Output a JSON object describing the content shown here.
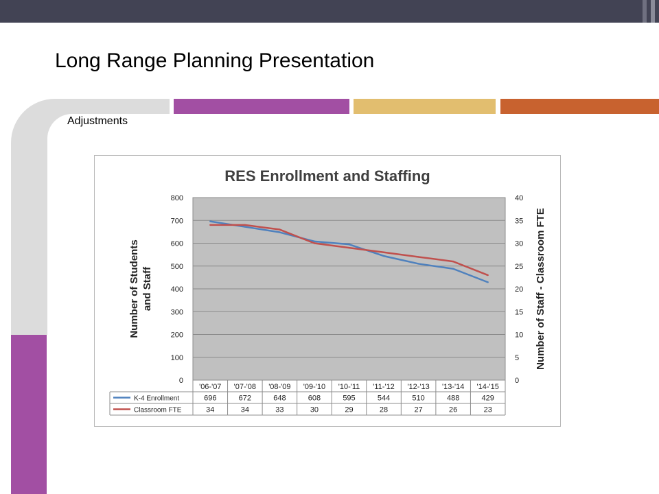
{
  "slide": {
    "title": "Long Range Planning Presentation",
    "subtitle": "Adjustments"
  },
  "theme": {
    "topbar": "#424354",
    "gray": "#dcdcdc",
    "purple": "#a24fa3",
    "gold": "#e2be6f",
    "orange": "#c8622f"
  },
  "chart_data": {
    "type": "line",
    "title": "RES Enrollment and Staffing",
    "ylabel": "Number of Students and Staff",
    "y2label": "Number of Staff - Classroom FTE",
    "categories": [
      "'06-'07",
      "'07-'08",
      "'08-'09",
      "'09-'10",
      "'10-'11",
      "'11-'12",
      "'12-'13",
      "'13-'14",
      "'14-'15"
    ],
    "ylim": [
      0,
      800
    ],
    "y2lim": [
      0,
      40
    ],
    "yticks": [
      0,
      100,
      200,
      300,
      400,
      500,
      600,
      700,
      800
    ],
    "y2ticks": [
      0,
      5,
      10,
      15,
      20,
      25,
      30,
      35,
      40
    ],
    "grid": true,
    "plot_background": "#c0c0c0",
    "legend": "data-table-below",
    "series": [
      {
        "name": "K-4 Enrollment",
        "axis": "left",
        "color": "#4f81bd",
        "values": [
          696,
          672,
          648,
          608,
          595,
          544,
          510,
          488,
          429
        ]
      },
      {
        "name": "Classroom FTE",
        "axis": "right",
        "color": "#c0504d",
        "values": [
          34,
          34,
          33,
          30,
          29,
          28,
          27,
          26,
          23
        ]
      }
    ]
  }
}
